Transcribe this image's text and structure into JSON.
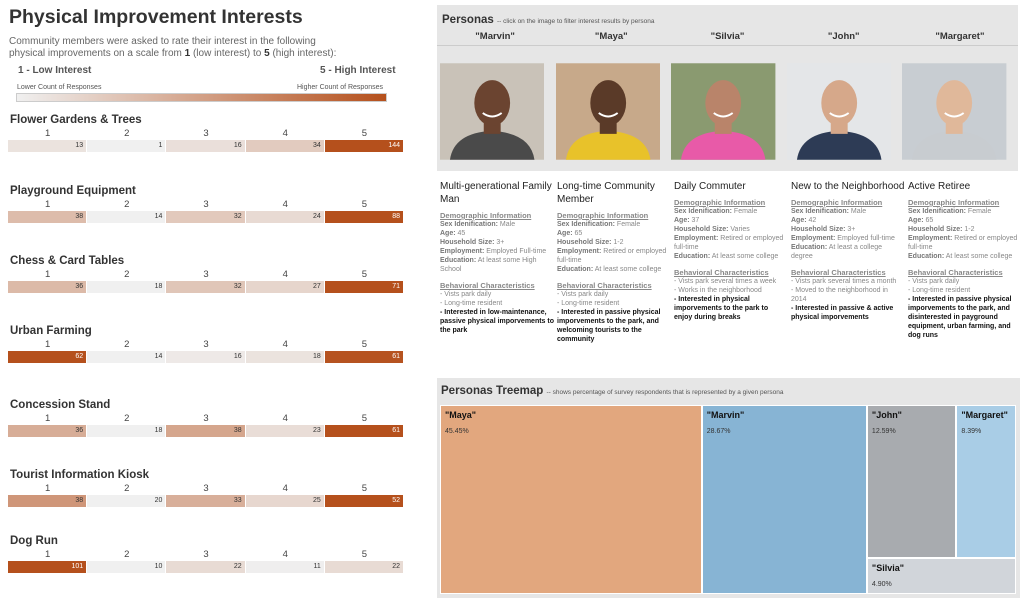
{
  "left": {
    "title": "Physical Improvement Interests",
    "intro_pre": "Community members were asked to rate their interest in the following physical improvements on a scale from ",
    "intro_one": "1",
    "intro_mid": " (low interest) to ",
    "intro_five": "5",
    "intro_post": " (high interest):",
    "low_label": "1 - Low Interest",
    "high_label": "5 - High Interest",
    "lower_count": "Lower Count of Responses",
    "higher_count": "Higher Count of Responses",
    "colors": {
      "low": "#f0f0f0",
      "high": "#b5501c"
    },
    "scale": [
      "1",
      "2",
      "3",
      "4",
      "5"
    ],
    "items": [
      {
        "name": "Flower Gardens & Trees",
        "values": [
          13,
          1,
          16,
          34,
          144
        ]
      },
      {
        "name": "Playground Equipment",
        "values": [
          38,
          14,
          32,
          24,
          88
        ]
      },
      {
        "name": "Chess & Card Tables",
        "values": [
          36,
          18,
          32,
          27,
          71
        ]
      },
      {
        "name": "Urban Farming",
        "values": [
          62,
          14,
          16,
          18,
          61
        ]
      },
      {
        "name": "Concession Stand",
        "values": [
          36,
          18,
          38,
          23,
          61
        ]
      },
      {
        "name": "Tourist Information Kiosk",
        "values": [
          38,
          20,
          33,
          25,
          52
        ]
      },
      {
        "name": "Dog Run",
        "values": [
          101,
          10,
          22,
          11,
          22
        ]
      }
    ]
  },
  "personas": {
    "title": "Personas",
    "subtitle": "-- click on the image to filter interest results by persona",
    "people": [
      {
        "name": "\"Marvin\"",
        "skin": "#6b4430",
        "shirt": "#4a4a4a",
        "bg": "#c9c2b8",
        "title": "Multi-generational Family Man",
        "sex": "Male",
        "age": "45",
        "household": "3+",
        "employment": "Employed Full-time",
        "education": "At least some High School",
        "behaviors": [
          "- Vists park daily",
          "- Long-time resident"
        ],
        "interest": "- Interested in low-maintenance, passive physical imporvements to the park"
      },
      {
        "name": "\"Maya\"",
        "skin": "#5a3a28",
        "shirt": "#e8c22a",
        "bg": "#c7a98a",
        "title": "Long-time Community Member",
        "sex": "Female",
        "age": "65",
        "household": "1-2",
        "employment": "Retired or employed full-time",
        "education": "At least some college",
        "behaviors": [
          "- Vists park daily",
          "- Long-time resident"
        ],
        "interest": "- Interested in passive physical imporvements to the park, and welcoming tourists to the community"
      },
      {
        "name": "\"Silvia\"",
        "skin": "#b9846a",
        "shirt": "#e85aa8",
        "bg": "#8a9a70",
        "title": "Daily Commuter",
        "sex": "Female",
        "age": "37",
        "household": "Varies",
        "employment": "Retired or employed full-time",
        "education": "At least some college",
        "behaviors": [
          "- Vists park several times a week",
          "- Works in the neighborhood"
        ],
        "interest": "- Interested in physical imporvements to the park to enjoy during breaks"
      },
      {
        "name": "\"John\"",
        "skin": "#d6a88a",
        "shirt": "#2d3b55",
        "bg": "#e4e6e8",
        "title": "New to the Neighborhood",
        "sex": "Male",
        "age": "42",
        "household": "3+",
        "employment": "Employed full-time",
        "education": "At least a college degree",
        "behaviors": [
          "- Vists park several times a month",
          "- Moved to the neighborhood in 2014"
        ],
        "interest": "- Interested in passive & active physical imporvements"
      },
      {
        "name": "\"Margaret\"",
        "skin": "#e0b89a",
        "shirt": "#c8ccd0",
        "bg": "#c8cdd2",
        "title": "Active Retiree",
        "sex": "Female",
        "age": "65",
        "household": "1-2",
        "employment": "Retired or employed full-time",
        "education": "At least some college",
        "behaviors": [
          "- Vists park daily",
          "- Long-time resident"
        ],
        "interest": "- Interested in passive physical imporvements to the park, and disinterested in payground equipment, urban farming, and dog runs"
      }
    ],
    "labels": {
      "demo": "Demographic Information",
      "sex": "Sex Idenification:",
      "age": "Age:",
      "household": "Household Size:",
      "employment": "Employment:",
      "education": "Education:",
      "behavior": "Behavioral Characteristics"
    }
  },
  "treemap": {
    "title": "Personas Treemap",
    "subtitle": "-- shows percentage of survey respondents that is represented by a given persona",
    "chart_data": {
      "type": "treemap",
      "tiles": [
        {
          "name": "\"Maya\"",
          "value": 45.45,
          "label": "45.45%",
          "color": "#e2a77e"
        },
        {
          "name": "\"Marvin\"",
          "value": 28.67,
          "label": "28.67%",
          "color": "#87b4d4"
        },
        {
          "name": "\"John\"",
          "value": 12.59,
          "label": "12.59%",
          "color": "#a8abaf"
        },
        {
          "name": "\"Margaret\"",
          "value": 8.39,
          "label": "8.39%",
          "color": "#a9cde6"
        },
        {
          "name": "\"Silvia\"",
          "value": 4.9,
          "label": "4.90%",
          "color": "#d1d5da"
        }
      ]
    }
  }
}
